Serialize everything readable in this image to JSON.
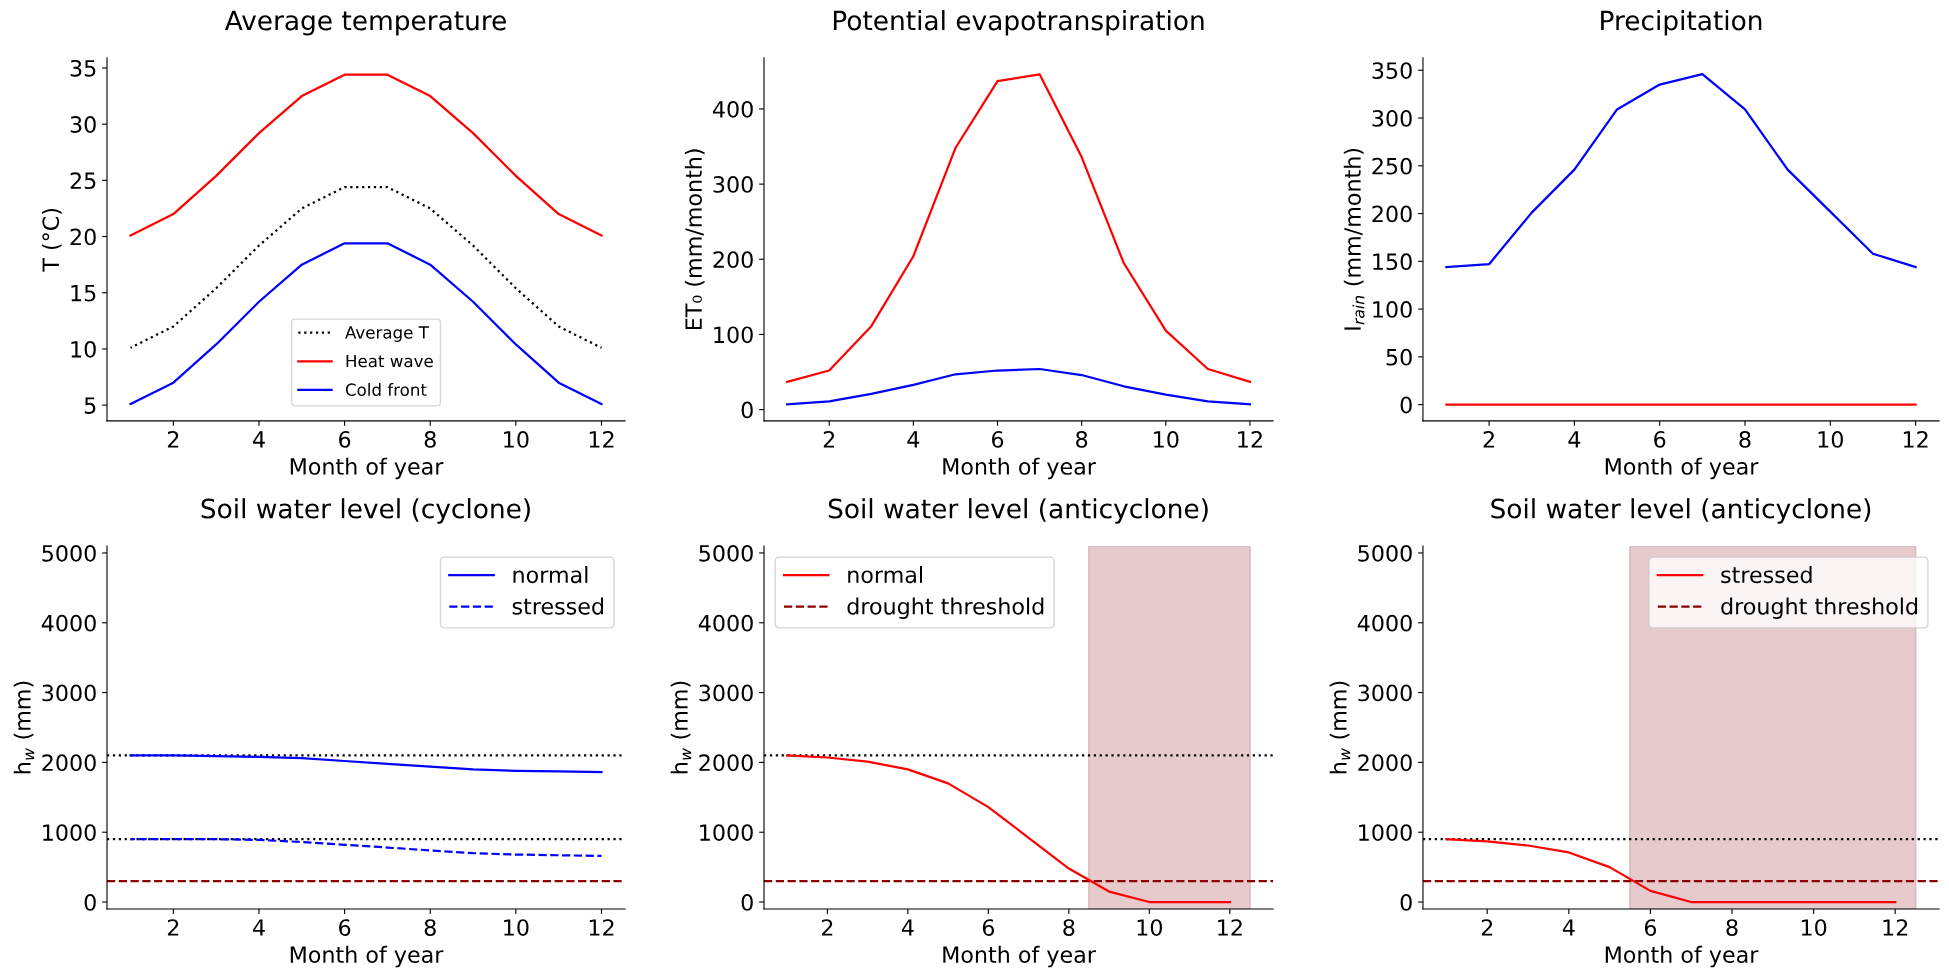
{
  "chart_data": [
    {
      "type": "line",
      "title": "Average temperature",
      "xlabel": "Month of year",
      "ylabel": "T (°C)",
      "x": [
        1,
        2,
        3,
        4,
        5,
        6,
        7,
        8,
        9,
        10,
        11,
        12
      ],
      "series": [
        {
          "name": "Average T",
          "color": "#000000",
          "line_style": "dotted",
          "values": [
            10.1,
            12,
            15.4,
            19.2,
            22.5,
            24.4,
            24.4,
            22.5,
            19.2,
            15.4,
            12,
            10.1
          ]
        },
        {
          "name": "Heat wave",
          "color": "#ff0000",
          "values": [
            20.1,
            22,
            25.4,
            29.2,
            32.5,
            34.4,
            34.4,
            32.5,
            29.2,
            25.4,
            22,
            20.1
          ]
        },
        {
          "name": "Cold front",
          "color": "#0000ff",
          "values": [
            5.1,
            7,
            10.4,
            14.2,
            17.5,
            19.4,
            19.4,
            17.5,
            14.2,
            10.4,
            7,
            5.1
          ]
        }
      ],
      "xlim": [
        0.45,
        12.55
      ],
      "ylim": [
        3.6,
        35.9
      ],
      "xticks": [
        2,
        4,
        6,
        8,
        10,
        12
      ],
      "yticks": [
        5,
        10,
        15,
        20,
        25,
        30,
        35
      ],
      "legend": "bottom",
      "line_style": "solid"
    },
    {
      "type": "line",
      "title": "Potential evapotranspiration",
      "xlabel": "Month of year",
      "ylabel": "ET₀ (mm/month)",
      "x": [
        1,
        2,
        3,
        4,
        5,
        6,
        7,
        8,
        9,
        10,
        11,
        12
      ],
      "series": [
        {
          "color": "#ff0000",
          "values": [
            37,
            52,
            111,
            204,
            348,
            437,
            446,
            336,
            195,
            105,
            54,
            37
          ]
        },
        {
          "color": "#0000ff",
          "values": [
            7,
            11,
            21,
            33,
            47,
            52,
            54,
            46,
            31,
            20,
            11,
            7
          ]
        }
      ],
      "xlim": [
        0.45,
        12.55
      ],
      "ylim": [
        -15,
        468
      ],
      "xticks": [
        2,
        4,
        6,
        8,
        10,
        12
      ],
      "yticks": [
        0,
        100,
        200,
        300,
        400
      ],
      "line_style": "solid"
    },
    {
      "type": "line",
      "title": "Precipitation",
      "xlabel": "Month of year",
      "ylabel": "I$_{rain}$ (mm/month)",
      "x": [
        1,
        2,
        3,
        4,
        5,
        6,
        7,
        8,
        9,
        10,
        11,
        12
      ],
      "series": [
        {
          "color": "#0000ff",
          "values": [
            144,
            147,
            201,
            246,
            309,
            335,
            346,
            309,
            246,
            202,
            158,
            144
          ]
        },
        {
          "color": "#ff0000",
          "values": [
            0,
            0,
            0,
            0,
            0,
            0,
            0,
            0,
            0,
            0,
            0,
            0
          ]
        }
      ],
      "xlim": [
        0.45,
        12.55
      ],
      "ylim": [
        -17,
        363
      ],
      "xticks": [
        2,
        4,
        6,
        8,
        10,
        12
      ],
      "yticks": [
        0,
        50,
        100,
        150,
        200,
        250,
        300,
        350
      ],
      "line_style": "solid"
    },
    {
      "type": "line",
      "title": "Soil water level (cyclone)",
      "xlabel": "Month of year",
      "ylabel": "h$_{w}$ (mm)",
      "x": [
        1,
        2,
        3,
        4,
        5,
        6,
        7,
        8,
        9,
        10,
        11,
        12
      ],
      "series": [
        {
          "name": "normal",
          "color": "#0000ff",
          "values": [
            2100,
            2100,
            2090,
            2080,
            2060,
            2020,
            1980,
            1940,
            1900,
            1880,
            1870,
            1860
          ]
        },
        {
          "name": "stressed",
          "color": "#0000ff",
          "line_style": "dashed",
          "values": [
            900,
            900,
            900,
            890,
            860,
            820,
            780,
            740,
            700,
            680,
            670,
            660
          ]
        }
      ],
      "ref_lines": [
        {
          "axis": "y",
          "value": 2100,
          "color": "#000000",
          "line_style": "dotted"
        },
        {
          "axis": "y",
          "value": 900,
          "color": "#000000",
          "line_style": "dotted"
        },
        {
          "axis": "y",
          "value": 300,
          "color": "#8b0000",
          "line_style": "dashed"
        }
      ],
      "xlim": [
        0.45,
        12.55
      ],
      "ylim": [
        -100,
        5100
      ],
      "xticks": [
        2,
        4,
        6,
        8,
        10,
        12
      ],
      "yticks": [
        0,
        1000,
        2000,
        3000,
        4000,
        5000
      ],
      "legend": "top right",
      "line_style": "solid"
    },
    {
      "type": "line",
      "title": "Soil water level (anticyclone)",
      "xlabel": "Month of year",
      "ylabel": "h$_{w}$ (mm)",
      "x": [
        1,
        2,
        3,
        4,
        5,
        6,
        7,
        8,
        9,
        10,
        11,
        12
      ],
      "series": [
        {
          "name": "normal",
          "color": "#ff0000",
          "values": [
            2100,
            2070,
            2010,
            1900,
            1700,
            1360,
            920,
            480,
            150,
            0,
            0,
            0
          ]
        }
      ],
      "ref_lines": [
        {
          "axis": "y",
          "value": 2100,
          "color": "#000000",
          "line_style": "dotted"
        },
        {
          "axis": "y",
          "value": 300,
          "color": "#8b0000",
          "line_style": "dashed",
          "label": "drought threshold"
        }
      ],
      "bands": [
        {
          "axis": "x",
          "from": 8.5,
          "to": 12.5,
          "color": "#e7cbcc"
        }
      ],
      "xlim": [
        0.425,
        13.075
      ],
      "ylim": [
        -100,
        5100
      ],
      "xticks": [
        2,
        4,
        6,
        8,
        10,
        12
      ],
      "yticks": [
        0,
        1000,
        2000,
        3000,
        4000,
        5000
      ],
      "legend": "top left",
      "line_style": "solid"
    },
    {
      "type": "line",
      "title": "Soil water level (anticyclone)",
      "xlabel": "Month of year",
      "ylabel": "h$_{w}$ (mm)",
      "x": [
        1,
        2,
        3,
        4,
        5,
        6,
        7,
        8,
        9,
        10,
        11,
        12
      ],
      "series": [
        {
          "name": "stressed",
          "color": "#ff0000",
          "values": [
            900,
            870,
            810,
            710,
            500,
            160,
            0,
            0,
            0,
            0,
            0,
            0
          ]
        }
      ],
      "ref_lines": [
        {
          "axis": "y",
          "value": 900,
          "color": "#000000",
          "line_style": "dotted"
        },
        {
          "axis": "y",
          "value": 300,
          "color": "#8b0000",
          "line_style": "dashed",
          "label": "drought threshold"
        }
      ],
      "bands": [
        {
          "axis": "x",
          "from": 5.5,
          "to": 12.5,
          "color": "#e7cbcc"
        }
      ],
      "xlim": [
        0.425,
        13.075
      ],
      "ylim": [
        -100,
        5100
      ],
      "xticks": [
        2,
        4,
        6,
        8,
        10,
        12
      ],
      "yticks": [
        0,
        1000,
        2000,
        3000,
        4000,
        5000
      ],
      "legend": "top right",
      "line_style": "solid"
    }
  ]
}
